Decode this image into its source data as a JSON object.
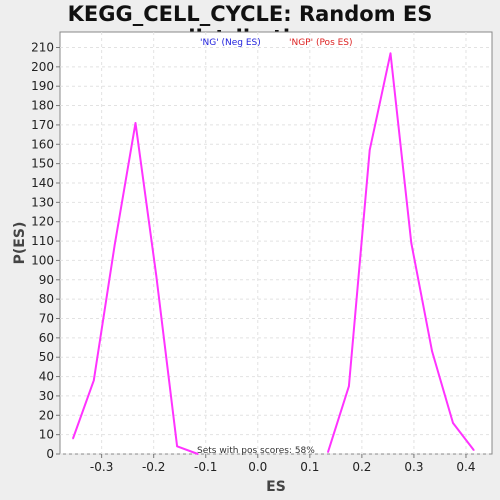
{
  "chart_data": {
    "type": "line",
    "title": "KEGG_CELL_CYCLE: Random ES distribution",
    "xlabel": "ES",
    "ylabel": "P(ES)",
    "xlim": [
      -0.38,
      0.45
    ],
    "ylim": [
      0,
      218
    ],
    "x_ticks": [
      -0.3,
      -0.2,
      -0.1,
      0.0,
      0.1,
      0.2,
      0.3,
      0.4
    ],
    "x_tick_labels": [
      "-0.3",
      "-0.2",
      "-0.1",
      "0.0",
      "0.1",
      "0.2",
      "0.3",
      "0.4"
    ],
    "y_ticks": [
      0,
      10,
      20,
      30,
      40,
      50,
      60,
      70,
      80,
      90,
      100,
      110,
      120,
      130,
      140,
      150,
      160,
      170,
      180,
      190,
      200,
      210
    ],
    "grid": true,
    "legend": [
      {
        "name": "'NG' (Neg ES)",
        "color": "#2222dd"
      },
      {
        "name": "'NGP' (Pos ES)",
        "color": "#dd2222"
      }
    ],
    "annotation": "Sets with pos scores: 58%",
    "series": [
      {
        "color": "#ff33ff",
        "x": [
          -0.355,
          -0.315,
          -0.275,
          -0.235,
          -0.195,
          -0.155,
          -0.115
        ],
        "y": [
          8,
          38,
          108,
          171,
          92,
          4,
          0
        ]
      },
      {
        "color": "#ff33ff",
        "x": [
          0.135,
          0.175,
          0.215,
          0.255,
          0.295,
          0.335,
          0.375,
          0.415
        ],
        "y": [
          1,
          35,
          157,
          207,
          109,
          53,
          16,
          2
        ]
      }
    ]
  }
}
